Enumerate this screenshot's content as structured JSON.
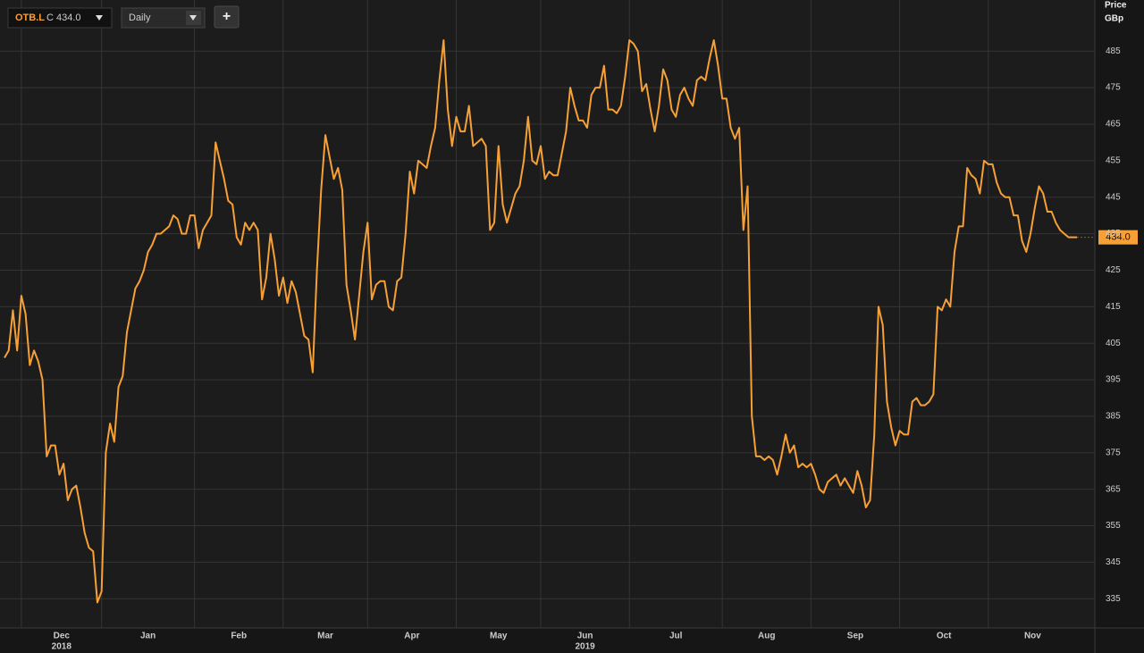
{
  "toolbar": {
    "symbol": "OTB.L",
    "close": "C 434.0",
    "interval": "Daily",
    "add": "+"
  },
  "chart_data": {
    "type": "line",
    "axis_title": [
      "Price",
      "GBp"
    ],
    "last_price_label": "434.0",
    "color": "#f7a035",
    "grid": true,
    "ylim": [
      327,
      499
    ],
    "yticks": [
      335,
      345,
      355,
      365,
      375,
      385,
      395,
      405,
      415,
      425,
      435,
      445,
      455,
      465,
      475,
      485
    ],
    "categories": [
      null,
      null,
      null,
      null,
      "Dec",
      null,
      null,
      null,
      null,
      null,
      null,
      null,
      null,
      null,
      null,
      null,
      null,
      null,
      null,
      null,
      null,
      null,
      null,
      "Jan",
      null,
      null,
      null,
      null,
      null,
      null,
      null,
      null,
      null,
      null,
      null,
      null,
      null,
      null,
      null,
      null,
      null,
      null,
      null,
      null,
      null,
      "Feb",
      null,
      null,
      null,
      null,
      null,
      null,
      null,
      null,
      null,
      null,
      null,
      null,
      null,
      null,
      null,
      null,
      null,
      null,
      null,
      null,
      "Mar",
      null,
      null,
      null,
      null,
      null,
      null,
      null,
      null,
      null,
      null,
      null,
      null,
      null,
      null,
      null,
      null,
      null,
      null,
      null,
      "Apr",
      null,
      null,
      null,
      null,
      null,
      null,
      null,
      null,
      null,
      null,
      null,
      null,
      null,
      null,
      null,
      null,
      null,
      null,
      null,
      null,
      "May",
      null,
      null,
      null,
      null,
      null,
      null,
      null,
      null,
      null,
      null,
      null,
      null,
      null,
      null,
      null,
      null,
      null,
      null,
      null,
      "Jun",
      null,
      null,
      null,
      null,
      null,
      null,
      null,
      null,
      null,
      null,
      null,
      null,
      null,
      null,
      null,
      null,
      null,
      null,
      null,
      null,
      "Jul",
      null,
      null,
      null,
      null,
      null,
      null,
      null,
      null,
      null,
      null,
      null,
      null,
      null,
      null,
      null,
      null,
      null,
      null,
      null,
      null,
      null,
      "Aug",
      null,
      null,
      null,
      null,
      null,
      null,
      null,
      null,
      null,
      null,
      null,
      null,
      null,
      null,
      null,
      null,
      null,
      null,
      null,
      null,
      "Sep",
      null,
      null,
      null,
      null,
      null,
      null,
      null,
      null,
      null,
      null,
      null,
      null,
      null,
      null,
      null,
      null,
      null,
      null,
      null,
      null,
      "Oct",
      null,
      null,
      null,
      null,
      null,
      null,
      null,
      null,
      null,
      null,
      null,
      null,
      null,
      null,
      null,
      null,
      null,
      null,
      null,
      null,
      "Nov",
      null,
      null,
      null,
      null,
      null,
      null,
      null,
      null,
      null,
      null,
      null,
      null,
      null,
      null,
      null,
      null,
      null,
      null,
      null,
      null,
      null
    ],
    "years": [
      null,
      null,
      null,
      null,
      "2018",
      null,
      null,
      null,
      null,
      null,
      null,
      null,
      null,
      null,
      null,
      null,
      null,
      null,
      null,
      null,
      null,
      null,
      null,
      null,
      null,
      null,
      null,
      null,
      null,
      null,
      null,
      null,
      null,
      null,
      null,
      null,
      null,
      null,
      null,
      null,
      null,
      null,
      null,
      null,
      null,
      null,
      null,
      null,
      null,
      null,
      null,
      null,
      null,
      null,
      null,
      null,
      null,
      null,
      null,
      null,
      null,
      null,
      null,
      null,
      null,
      null,
      null,
      null,
      null,
      null,
      null,
      null,
      null,
      null,
      null,
      null,
      null,
      null,
      null,
      null,
      null,
      null,
      null,
      null,
      null,
      null,
      null,
      null,
      null,
      null,
      null,
      null,
      null,
      null,
      null,
      null,
      null,
      null,
      null,
      null,
      null,
      null,
      null,
      null,
      null,
      null,
      null,
      null,
      null,
      null,
      null,
      null,
      null,
      null,
      null,
      null,
      null,
      null,
      null,
      null,
      null,
      null,
      null,
      null,
      null,
      null,
      null,
      "2019",
      null,
      null,
      null,
      null,
      null,
      null,
      null,
      null,
      null,
      null,
      null,
      null,
      null,
      null,
      null,
      null,
      null,
      null,
      null,
      null,
      null,
      null,
      null,
      null,
      null,
      null,
      null,
      null,
      null,
      null,
      null,
      null,
      null,
      null,
      null,
      null,
      null,
      null,
      null,
      null,
      null,
      null,
      null,
      null,
      null,
      null,
      null,
      null,
      null,
      null,
      null,
      null,
      null,
      null,
      null,
      null,
      null,
      null,
      null,
      null,
      null,
      null,
      null,
      null,
      null,
      null,
      null,
      null,
      null,
      null,
      null,
      null,
      null,
      null,
      null,
      null,
      null,
      null,
      null,
      null,
      null,
      null,
      null,
      null,
      null,
      null,
      null,
      null,
      null,
      null,
      null,
      null,
      null,
      null,
      null,
      null,
      null,
      null,
      null,
      null,
      null,
      null,
      null,
      null,
      null,
      null,
      null,
      null,
      null,
      null,
      null,
      null,
      null,
      null,
      null,
      null,
      null,
      null,
      null,
      null,
      null,
      null,
      null,
      null,
      null,
      null,
      null
    ],
    "values": [
      401,
      403,
      414,
      403,
      418,
      413,
      399,
      403,
      400,
      395,
      374,
      377,
      377,
      369,
      372,
      362,
      365,
      366,
      360,
      353,
      349,
      348,
      334,
      337,
      375,
      383,
      378,
      393,
      396,
      408,
      414,
      420,
      422,
      425,
      430,
      432,
      435,
      435,
      436,
      437,
      440,
      439,
      435,
      435,
      440,
      440,
      431,
      436,
      438,
      440,
      460,
      455,
      450,
      444,
      443,
      434,
      432,
      438,
      436,
      438,
      436,
      417,
      423,
      435,
      428,
      418,
      423,
      416,
      422,
      419,
      413,
      407,
      406,
      397,
      425,
      447,
      462,
      456,
      450,
      453,
      447,
      421,
      414,
      406,
      418,
      430,
      438,
      417,
      421,
      422,
      422,
      415,
      414,
      422,
      423,
      435,
      452,
      446,
      455,
      454,
      453,
      459,
      464,
      477,
      488,
      469,
      459,
      467,
      463,
      463,
      470,
      459,
      460,
      461,
      459,
      436,
      438,
      459,
      443,
      438,
      442,
      446,
      448,
      455,
      467,
      455,
      454,
      459,
      450,
      452,
      451,
      451,
      457,
      463,
      475,
      470,
      466,
      466,
      464,
      473,
      475,
      475,
      481,
      469,
      469,
      468,
      470,
      478,
      488,
      487,
      485,
      474,
      476,
      469,
      463,
      470,
      480,
      477,
      469,
      467,
      473,
      475,
      472,
      470,
      477,
      478,
      477,
      483,
      488,
      481,
      472,
      472,
      464,
      461,
      464,
      436,
      448,
      385,
      374,
      374,
      373,
      374,
      373,
      369,
      374,
      380,
      375,
      377,
      371,
      372,
      371,
      372,
      369,
      365,
      364,
      367,
      368,
      369,
      366,
      368,
      366,
      364,
      370,
      366,
      360,
      362,
      380,
      415,
      410,
      389,
      382,
      377,
      381,
      380,
      380,
      389,
      390,
      388,
      388,
      389,
      391,
      415,
      414,
      417,
      415,
      430,
      437,
      437,
      453,
      451,
      450,
      446,
      455,
      454,
      454,
      449,
      446,
      445,
      445,
      440,
      440,
      433,
      430,
      435,
      442,
      448,
      446,
      441,
      441,
      438,
      436,
      435,
      434,
      434,
      434
    ]
  }
}
